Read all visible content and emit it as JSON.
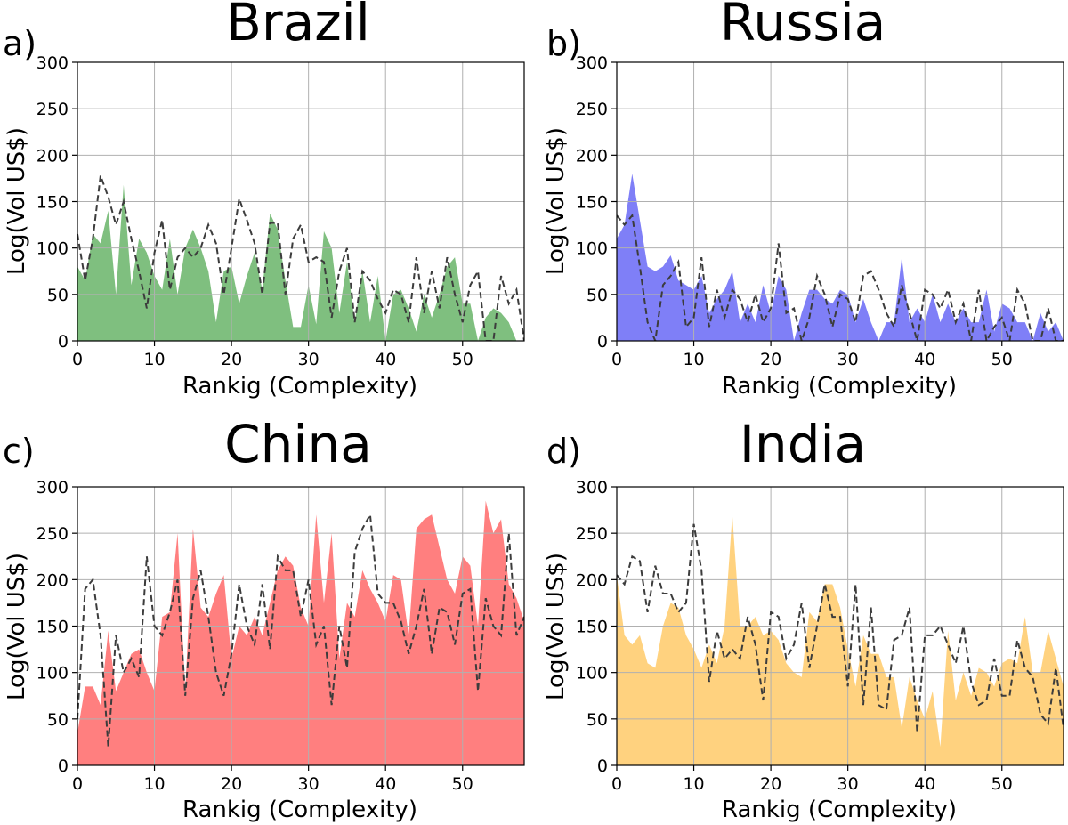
{
  "figure": {
    "letters": [
      "a)",
      "b)",
      "c)",
      "d)"
    ]
  },
  "chart_data": [
    {
      "type": "area",
      "title": "Brazil",
      "letter": "a)",
      "xlabel": "Rankig (Complexity)",
      "ylabel": "Log(Vol US$)",
      "xlim": [
        0,
        58
      ],
      "ylim": [
        0,
        300
      ],
      "xticks": [
        0,
        10,
        20,
        30,
        40,
        50
      ],
      "yticks": [
        0,
        50,
        100,
        150,
        200,
        250,
        300
      ],
      "grid": true,
      "colors": {
        "area": "#7fbf7f",
        "line": "#3c3c3c"
      },
      "x": [
        0,
        1,
        2,
        3,
        4,
        5,
        6,
        7,
        8,
        9,
        10,
        11,
        12,
        13,
        14,
        15,
        16,
        17,
        18,
        19,
        20,
        21,
        22,
        23,
        24,
        25,
        26,
        27,
        28,
        29,
        30,
        31,
        32,
        33,
        34,
        35,
        36,
        37,
        38,
        39,
        40,
        41,
        42,
        43,
        44,
        45,
        46,
        47,
        48,
        49,
        50,
        51,
        52,
        53,
        54,
        55,
        56,
        57,
        58
      ],
      "series": [
        {
          "type": "area",
          "values": [
            80,
            65,
            115,
            105,
            140,
            50,
            168,
            60,
            110,
            95,
            70,
            55,
            110,
            50,
            100,
            120,
            100,
            75,
            20,
            75,
            80,
            40,
            70,
            95,
            55,
            137,
            120,
            65,
            15,
            15,
            60,
            18,
            118,
            100,
            30,
            85,
            20,
            75,
            20,
            70,
            0,
            50,
            55,
            35,
            10,
            50,
            25,
            50,
            80,
            90,
            40,
            40,
            0,
            25,
            35,
            30,
            20,
            0,
            0
          ]
        },
        {
          "type": "line",
          "values": [
            115,
            65,
            110,
            178,
            155,
            125,
            150,
            110,
            75,
            35,
            95,
            130,
            55,
            90,
            100,
            90,
            100,
            125,
            105,
            50,
            100,
            153,
            130,
            105,
            50,
            127,
            127,
            50,
            110,
            125,
            85,
            90,
            85,
            25,
            75,
            100,
            20,
            75,
            65,
            45,
            30,
            55,
            50,
            20,
            90,
            30,
            75,
            35,
            90,
            50,
            20,
            60,
            75,
            0,
            0,
            70,
            40,
            55,
            0
          ]
        }
      ]
    },
    {
      "type": "area",
      "title": "Russia",
      "letter": "b)",
      "xlabel": "Rankig (Complexity)",
      "ylabel": "Log(Vol US$)",
      "xlim": [
        0,
        58
      ],
      "ylim": [
        0,
        300
      ],
      "xticks": [
        0,
        10,
        20,
        30,
        40,
        50
      ],
      "yticks": [
        0,
        50,
        100,
        150,
        200,
        250,
        300
      ],
      "grid": true,
      "colors": {
        "area": "#7f7ff7",
        "line": "#3c3c3c"
      },
      "x": [
        0,
        1,
        2,
        3,
        4,
        5,
        6,
        7,
        8,
        9,
        10,
        11,
        12,
        13,
        14,
        15,
        16,
        17,
        18,
        19,
        20,
        21,
        22,
        23,
        24,
        25,
        26,
        27,
        28,
        29,
        30,
        31,
        32,
        33,
        34,
        35,
        36,
        37,
        38,
        39,
        40,
        41,
        42,
        43,
        44,
        45,
        46,
        47,
        48,
        49,
        50,
        51,
        52,
        53,
        54,
        55,
        56,
        57,
        58
      ],
      "series": [
        {
          "type": "area",
          "values": [
            110,
            125,
            180,
            130,
            80,
            75,
            80,
            92,
            65,
            60,
            55,
            70,
            30,
            45,
            55,
            75,
            20,
            40,
            20,
            60,
            30,
            70,
            55,
            0,
            30,
            55,
            55,
            45,
            40,
            55,
            50,
            20,
            45,
            20,
            0,
            20,
            20,
            90,
            20,
            35,
            20,
            50,
            20,
            40,
            20,
            35,
            20,
            20,
            55,
            10,
            40,
            35,
            20,
            20,
            0,
            30,
            10,
            20,
            0
          ]
        },
        {
          "type": "line",
          "values": [
            135,
            125,
            135,
            80,
            20,
            0,
            60,
            70,
            85,
            15,
            25,
            90,
            15,
            55,
            25,
            55,
            45,
            20,
            50,
            20,
            35,
            105,
            30,
            35,
            0,
            25,
            70,
            50,
            15,
            50,
            45,
            20,
            70,
            75,
            55,
            30,
            15,
            60,
            30,
            0,
            55,
            50,
            35,
            55,
            20,
            40,
            0,
            55,
            0,
            15,
            25,
            0,
            55,
            40,
            0,
            0,
            35,
            0,
            0
          ]
        }
      ]
    },
    {
      "type": "area",
      "title": "China",
      "letter": "c)",
      "xlabel": "Rankig (Complexity)",
      "ylabel": "Log(Vol US$)",
      "xlim": [
        0,
        58
      ],
      "ylim": [
        0,
        300
      ],
      "xticks": [
        0,
        10,
        20,
        30,
        40,
        50
      ],
      "yticks": [
        0,
        50,
        100,
        150,
        200,
        250,
        300
      ],
      "grid": true,
      "colors": {
        "area": "#ff7f7f",
        "line": "#3c3c3c"
      },
      "x": [
        0,
        1,
        2,
        3,
        4,
        5,
        6,
        7,
        8,
        9,
        10,
        11,
        12,
        13,
        14,
        15,
        16,
        17,
        18,
        19,
        20,
        21,
        22,
        23,
        24,
        25,
        26,
        27,
        28,
        29,
        30,
        31,
        32,
        33,
        34,
        35,
        36,
        37,
        38,
        39,
        40,
        41,
        42,
        43,
        44,
        45,
        46,
        47,
        48,
        49,
        50,
        51,
        52,
        53,
        54,
        55,
        56,
        57,
        58
      ],
      "series": [
        {
          "type": "area",
          "values": [
            35,
            85,
            85,
            65,
            145,
            80,
            100,
            120,
            125,
            100,
            80,
            160,
            165,
            250,
            80,
            255,
            170,
            160,
            185,
            205,
            115,
            150,
            140,
            160,
            140,
            175,
            210,
            225,
            215,
            170,
            150,
            270,
            175,
            250,
            115,
            175,
            160,
            210,
            190,
            175,
            155,
            205,
            200,
            140,
            255,
            265,
            270,
            235,
            200,
            185,
            225,
            215,
            150,
            285,
            250,
            265,
            195,
            180,
            155
          ]
        },
        {
          "type": "line",
          "values": [
            50,
            190,
            200,
            140,
            20,
            140,
            100,
            115,
            95,
            225,
            150,
            140,
            165,
            200,
            75,
            180,
            210,
            160,
            100,
            75,
            120,
            195,
            150,
            130,
            195,
            125,
            225,
            210,
            210,
            160,
            200,
            130,
            150,
            65,
            150,
            105,
            230,
            255,
            270,
            185,
            175,
            175,
            155,
            120,
            150,
            190,
            120,
            170,
            165,
            130,
            185,
            190,
            80,
            180,
            150,
            140,
            250,
            140,
            160
          ]
        }
      ]
    },
    {
      "type": "area",
      "title": "India",
      "letter": "d)",
      "xlabel": "Rankig (Complexity)",
      "ylabel": "Log(Vol US$)",
      "xlim": [
        0,
        58
      ],
      "ylim": [
        0,
        300
      ],
      "xticks": [
        0,
        10,
        20,
        30,
        40,
        50
      ],
      "yticks": [
        0,
        50,
        100,
        150,
        200,
        250,
        300
      ],
      "grid": true,
      "colors": {
        "area": "#ffd27f",
        "line": "#3c3c3c"
      },
      "x": [
        0,
        1,
        2,
        3,
        4,
        5,
        6,
        7,
        8,
        9,
        10,
        11,
        12,
        13,
        14,
        15,
        16,
        17,
        18,
        19,
        20,
        21,
        22,
        23,
        24,
        25,
        26,
        27,
        28,
        29,
        30,
        31,
        32,
        33,
        34,
        35,
        36,
        37,
        38,
        39,
        40,
        41,
        42,
        43,
        44,
        45,
        46,
        47,
        48,
        49,
        50,
        51,
        52,
        53,
        54,
        55,
        56,
        57,
        58
      ],
      "series": [
        {
          "type": "area",
          "values": [
            205,
            140,
            130,
            140,
            110,
            105,
            150,
            175,
            170,
            140,
            125,
            105,
            130,
            110,
            150,
            270,
            150,
            150,
            160,
            140,
            145,
            135,
            110,
            100,
            95,
            165,
            155,
            195,
            195,
            170,
            125,
            85,
            140,
            120,
            120,
            95,
            95,
            40,
            95,
            70,
            50,
            80,
            20,
            145,
            70,
            100,
            75,
            105,
            100,
            85,
            110,
            115,
            110,
            160,
            100,
            100,
            145,
            115,
            85
          ]
        },
        {
          "type": "line",
          "values": [
            205,
            195,
            225,
            220,
            165,
            215,
            185,
            185,
            165,
            175,
            260,
            210,
            90,
            145,
            115,
            125,
            115,
            160,
            130,
            70,
            165,
            160,
            115,
            130,
            175,
            105,
            150,
            195,
            160,
            160,
            85,
            195,
            65,
            170,
            65,
            60,
            135,
            140,
            170,
            35,
            140,
            140,
            150,
            130,
            110,
            150,
            90,
            65,
            70,
            115,
            75,
            75,
            135,
            105,
            95,
            55,
            45,
            105,
            40
          ]
        }
      ]
    }
  ]
}
